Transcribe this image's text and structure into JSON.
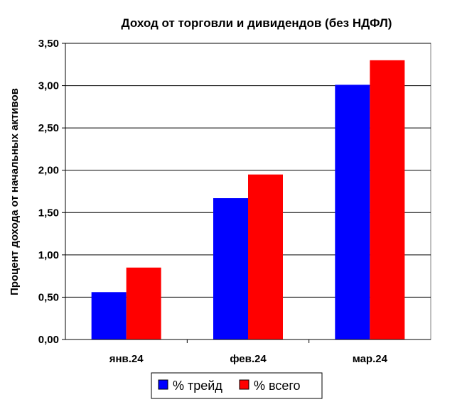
{
  "chart_data": {
    "type": "bar",
    "title": "Доход от торговли и дивидендов (без НДФЛ)",
    "xlabel": "",
    "ylabel": "Процент дохода от начальных активов",
    "categories": [
      "янв.24",
      "фев.24",
      "мар.24"
    ],
    "series": [
      {
        "name": "% трейд",
        "values": [
          0.56,
          1.67,
          3.01
        ],
        "color": "#0000ff"
      },
      {
        "name": "% всего",
        "values": [
          0.85,
          1.95,
          3.3
        ],
        "color": "#ff0000"
      }
    ],
    "ylim": [
      0,
      3.5
    ],
    "yticks": [
      "0,00",
      "0,50",
      "1,00",
      "1,50",
      "2,00",
      "2,50",
      "3,00",
      "3,50"
    ],
    "grid": true,
    "legend_position": "bottom"
  }
}
